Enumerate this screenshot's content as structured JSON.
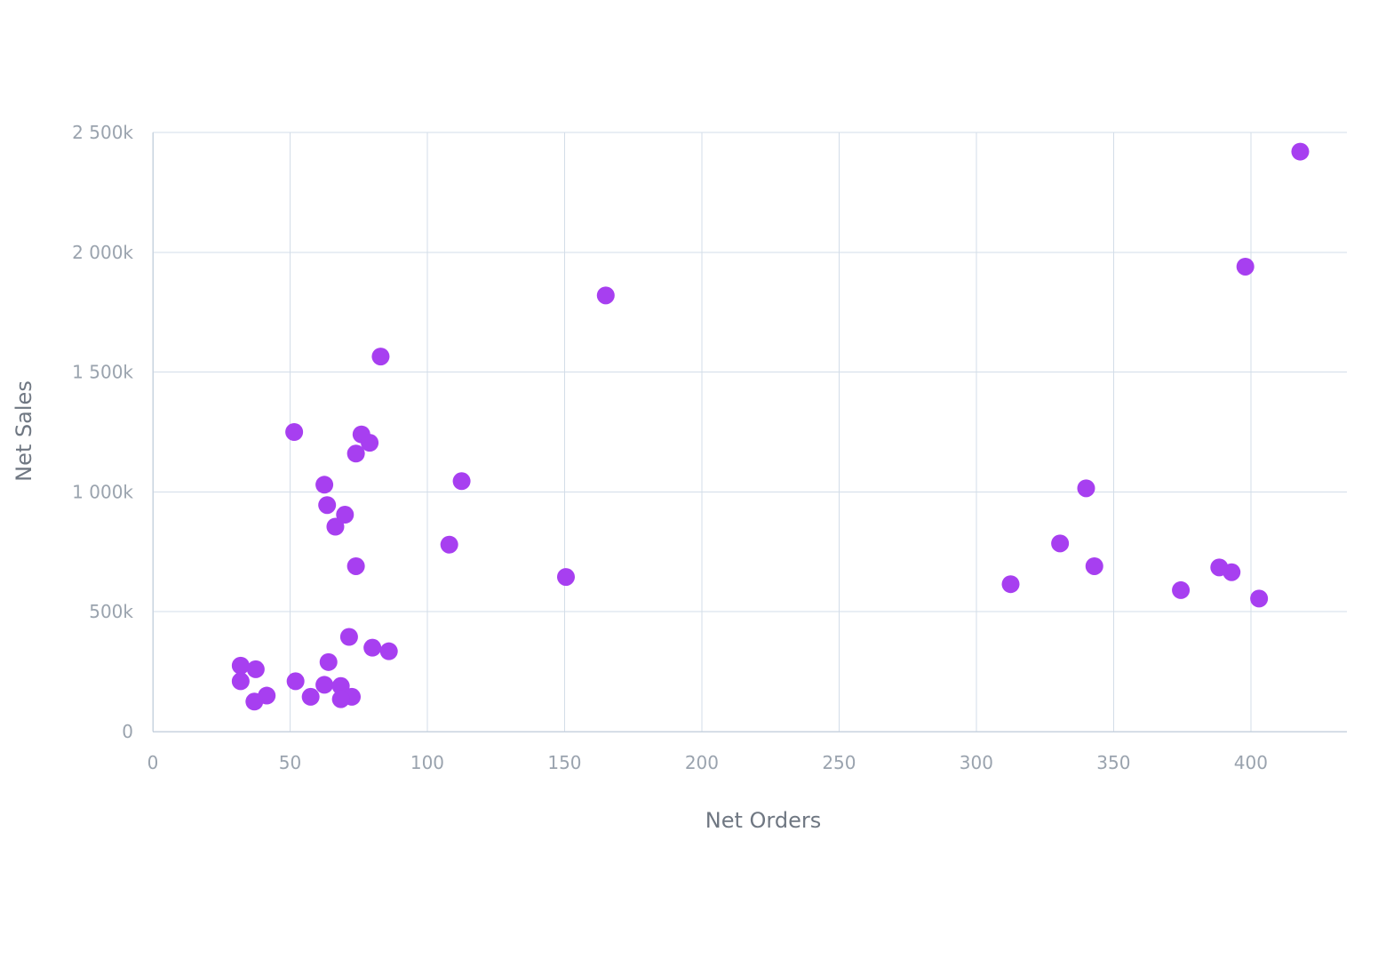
{
  "chart_data": {
    "type": "scatter",
    "title": "",
    "xlabel": "Net Orders",
    "ylabel": "Net Sales",
    "xlim": [
      0,
      435
    ],
    "ylim": [
      0,
      2500000
    ],
    "x_ticks": [
      0,
      50,
      100,
      150,
      200,
      250,
      300,
      350,
      400
    ],
    "x_tick_labels": [
      "0",
      "50",
      "100",
      "150",
      "200",
      "250",
      "300",
      "350",
      "400"
    ],
    "y_ticks": [
      0,
      500000,
      1000000,
      1500000,
      2000000,
      2500000
    ],
    "y_tick_labels": [
      "0",
      "500k",
      "1 000k",
      "1 500k",
      "2 000k",
      "2 500k"
    ],
    "grid": true,
    "legend": "none",
    "point_color": "#a73ff0",
    "points": [
      {
        "x": 418,
        "y": 2420000
      },
      {
        "x": 398,
        "y": 1940000
      },
      {
        "x": 165,
        "y": 1820000
      },
      {
        "x": 83,
        "y": 1565000
      },
      {
        "x": 51.5,
        "y": 1250000
      },
      {
        "x": 76,
        "y": 1240000
      },
      {
        "x": 79,
        "y": 1205000
      },
      {
        "x": 74,
        "y": 1160000
      },
      {
        "x": 112.5,
        "y": 1045000
      },
      {
        "x": 62.5,
        "y": 1030000
      },
      {
        "x": 340,
        "y": 1015000
      },
      {
        "x": 63.5,
        "y": 945000
      },
      {
        "x": 70,
        "y": 905000
      },
      {
        "x": 66.5,
        "y": 855000
      },
      {
        "x": 330.5,
        "y": 785000
      },
      {
        "x": 108,
        "y": 780000
      },
      {
        "x": 74,
        "y": 690000
      },
      {
        "x": 343,
        "y": 690000
      },
      {
        "x": 388.5,
        "y": 685000
      },
      {
        "x": 393,
        "y": 665000
      },
      {
        "x": 150.5,
        "y": 645000
      },
      {
        "x": 312.5,
        "y": 615000
      },
      {
        "x": 374.5,
        "y": 590000
      },
      {
        "x": 403,
        "y": 555000
      },
      {
        "x": 71.5,
        "y": 395000
      },
      {
        "x": 80,
        "y": 350000
      },
      {
        "x": 86,
        "y": 335000
      },
      {
        "x": 64,
        "y": 290000
      },
      {
        "x": 32,
        "y": 275000
      },
      {
        "x": 37.5,
        "y": 260000
      },
      {
        "x": 32,
        "y": 210000
      },
      {
        "x": 52,
        "y": 210000
      },
      {
        "x": 62.5,
        "y": 195000
      },
      {
        "x": 68.5,
        "y": 190000
      },
      {
        "x": 41.5,
        "y": 150000
      },
      {
        "x": 57.5,
        "y": 145000
      },
      {
        "x": 72.5,
        "y": 145000
      },
      {
        "x": 68.5,
        "y": 135000
      },
      {
        "x": 37,
        "y": 125000
      }
    ]
  }
}
